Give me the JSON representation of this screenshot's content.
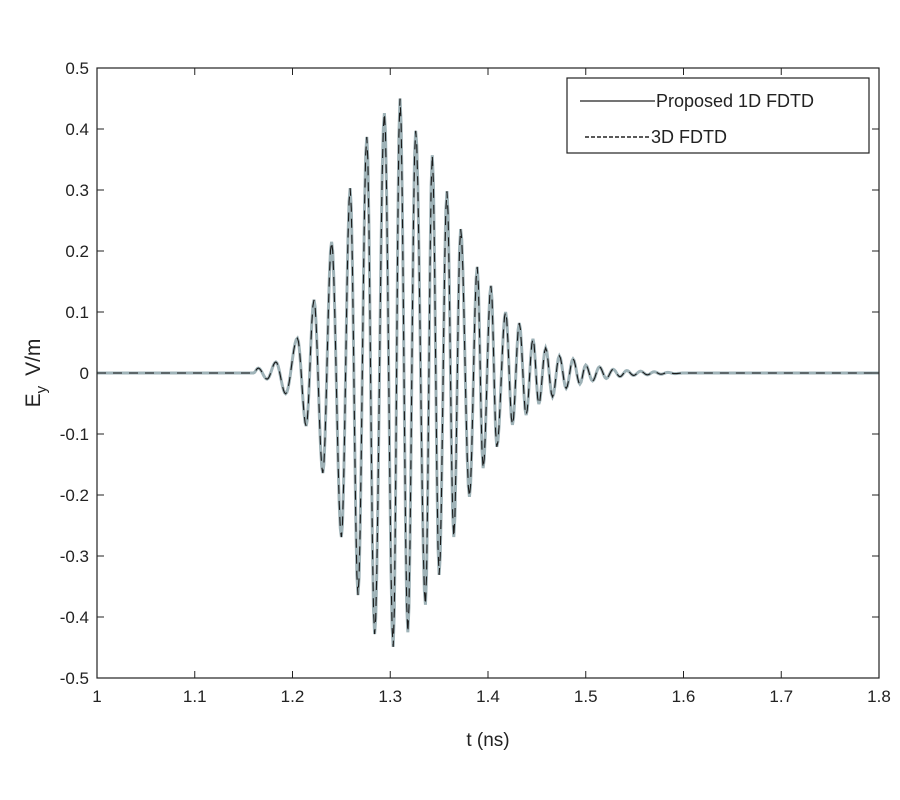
{
  "chart_data": {
    "type": "line",
    "title": "",
    "xlabel": "t (ns)",
    "ylabel_main": "E",
    "ylabel_sub": "y",
    "ylabel_unit": "V/m",
    "xlim": [
      1,
      1.8
    ],
    "ylim": [
      -0.5,
      0.5
    ],
    "xticks": [
      "1",
      "1.1",
      "1.2",
      "1.3",
      "1.4",
      "1.5",
      "1.6",
      "1.7",
      "1.8"
    ],
    "yticks": [
      "0.5",
      "0.4",
      "0.3",
      "0.2",
      "0.1",
      "0",
      "-0.1",
      "-0.2",
      "-0.3",
      "-0.4",
      "-0.5"
    ],
    "grid": false,
    "legend_placement": "top-right",
    "series": [
      {
        "name": "Proposed 1D FDTD",
        "style": "solid",
        "color": "#1a1a1a"
      },
      {
        "name": "3D FDTD",
        "style": "dashed",
        "color": "#9fb3b8"
      }
    ],
    "waveform_extrema": {
      "t": [
        1.0,
        1.16,
        1.165,
        1.174,
        1.183,
        1.193,
        1.205,
        1.214,
        1.222,
        1.231,
        1.24,
        1.25,
        1.259,
        1.267,
        1.276,
        1.284,
        1.294,
        1.303,
        1.31,
        1.318,
        1.326,
        1.336,
        1.343,
        1.35,
        1.358,
        1.365,
        1.372,
        1.381,
        1.389,
        1.395,
        1.403,
        1.409,
        1.418,
        1.425,
        1.432,
        1.439,
        1.446,
        1.452,
        1.459,
        1.466,
        1.473,
        1.48,
        1.487,
        1.494,
        1.5,
        1.507,
        1.514,
        1.521,
        1.528,
        1.535,
        1.542,
        1.549,
        1.556,
        1.563,
        1.57,
        1.577,
        1.584,
        1.591,
        1.6,
        1.8
      ],
      "y": [
        0,
        0,
        0.008,
        -0.01,
        0.018,
        -0.034,
        0.057,
        -0.087,
        0.12,
        -0.164,
        0.215,
        -0.269,
        0.303,
        -0.364,
        0.387,
        -0.428,
        0.426,
        -0.449,
        0.45,
        -0.425,
        0.397,
        -0.38,
        0.357,
        -0.331,
        0.298,
        -0.269,
        0.236,
        -0.203,
        0.174,
        -0.156,
        0.143,
        -0.121,
        0.1,
        -0.085,
        0.082,
        -0.069,
        0.056,
        -0.051,
        0.041,
        -0.039,
        0.028,
        -0.025,
        0.023,
        -0.018,
        0.013,
        -0.013,
        0.01,
        -0.009,
        0.006,
        -0.006,
        0.004,
        -0.004,
        0.003,
        -0.003,
        0.002,
        -0.002,
        0.001,
        -0.001,
        0,
        0
      ]
    }
  }
}
